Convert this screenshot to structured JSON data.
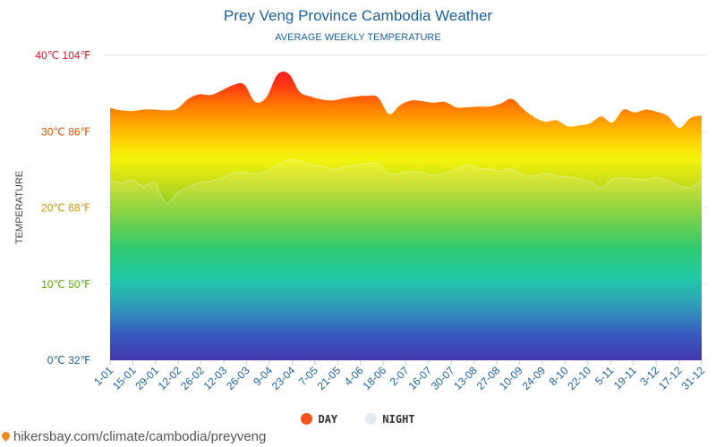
{
  "chart_data": {
    "type": "area",
    "title": "Prey Veng Province Cambodia Weather",
    "subtitle": "AVERAGE WEEKLY TEMPERATURE",
    "ylabel": "TEMPERATURE",
    "ylim": [
      0,
      40
    ],
    "y_ticks": [
      {
        "value": 0,
        "label": "0℃ 32℉",
        "color": "#1f5f99"
      },
      {
        "value": 10,
        "label": "10℃ 50℉",
        "color": "#55aa00"
      },
      {
        "value": 20,
        "label": "20℃ 68℉",
        "color": "#cc9900"
      },
      {
        "value": 30,
        "label": "30℃ 86℉",
        "color": "#e04a00"
      },
      {
        "value": 40,
        "label": "40℃ 104℉",
        "color": "#e0102a"
      }
    ],
    "x_tick_labels": [
      "1-01",
      "15-01",
      "29-01",
      "12-02",
      "26-02",
      "12-03",
      "26-03",
      "9-04",
      "23-04",
      "7-05",
      "21-05",
      "4-06",
      "18-06",
      "2-07",
      "16-07",
      "30-07",
      "13-08",
      "27-08",
      "10-09",
      "24-09",
      "8-10",
      "22-10",
      "5-11",
      "19-11",
      "3-12",
      "17-12",
      "31-12"
    ],
    "grid": true,
    "legend_position": "bottom",
    "series": [
      {
        "name": "DAY",
        "color": "#f4511e",
        "values": [
          33.1,
          32.8,
          32.7,
          32.9,
          32.9,
          32.8,
          33.0,
          34.3,
          34.9,
          34.8,
          35.4,
          36.1,
          36.2,
          33.9,
          34.5,
          37.5,
          37.6,
          35.2,
          34.6,
          34.2,
          34.1,
          34.4,
          34.6,
          34.7,
          34.5,
          32.3,
          33.5,
          34.1,
          34.0,
          33.8,
          33.9,
          33.2,
          33.2,
          33.3,
          33.3,
          33.7,
          34.3,
          33.0,
          31.9,
          31.3,
          31.5,
          30.7,
          30.8,
          31.1,
          32.0,
          31.2,
          32.9,
          32.5,
          32.9,
          32.6,
          32.0,
          30.5,
          31.8,
          32.1
        ]
      },
      {
        "name": "NIGHT",
        "color": "#e3eaf2",
        "values": [
          23.6,
          23.3,
          23.6,
          22.8,
          23.3,
          20.6,
          22.0,
          22.7,
          23.3,
          23.5,
          23.9,
          24.6,
          24.6,
          24.5,
          24.8,
          25.6,
          26.3,
          26.2,
          25.6,
          25.5,
          25.0,
          25.4,
          25.6,
          25.8,
          25.8,
          24.5,
          24.5,
          24.8,
          24.6,
          24.3,
          24.5,
          25.1,
          25.6,
          25.2,
          25.1,
          24.8,
          25.1,
          24.3,
          24.2,
          24.5,
          24.2,
          24.1,
          23.8,
          23.4,
          22.6,
          23.8,
          23.9,
          23.8,
          23.7,
          24.0,
          23.6,
          22.9,
          22.7,
          23.6
        ]
      }
    ]
  },
  "footer": {
    "site": "hikersbay.com/climate/cambodia/preyveng"
  }
}
